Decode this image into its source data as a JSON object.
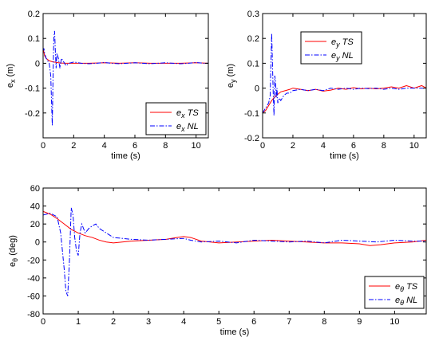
{
  "colors": {
    "ts": "#ff0000",
    "nl": "#0000ff"
  },
  "chart_data": [
    {
      "id": "ex",
      "type": "line",
      "xlabel": "time (s)",
      "ylabel_base": "e",
      "ylabel_sub": "x",
      "ylabel_unit": " (m)",
      "xlim": [
        0,
        10.8
      ],
      "ylim": [
        -0.3,
        0.2
      ],
      "xticks": [
        0,
        2,
        4,
        6,
        8,
        10
      ],
      "yticks": [
        -0.2,
        -0.1,
        0,
        0.1,
        0.2
      ],
      "ytick_labels": [
        "-0.2",
        "-0.1",
        "0",
        "0.1",
        "0.2"
      ],
      "legend_position": "bottom-right",
      "series": [
        {
          "name_base": "e",
          "name_sub": "x",
          "name_suffix": "TS",
          "style": "solid",
          "color_key": "ts",
          "x": [
            0,
            0.1,
            0.2,
            0.3,
            0.4,
            0.5,
            0.6,
            0.8,
            1.0,
            1.2,
            1.5,
            2,
            3,
            4,
            5,
            6,
            7,
            8,
            9,
            10,
            10.8
          ],
          "y": [
            0.06,
            0.03,
            0.02,
            0.015,
            0.01,
            0.008,
            0.006,
            0.004,
            0.002,
            0.001,
            0.0,
            0.0,
            0.0,
            0.002,
            0.0,
            0.002,
            0.0,
            0.0,
            0.0,
            0.002,
            0.0
          ]
        },
        {
          "name_base": "e",
          "name_sub": "x",
          "name_suffix": "NL",
          "style": "dashdot",
          "color_key": "nl",
          "x": [
            0,
            0.05,
            0.1,
            0.2,
            0.3,
            0.4,
            0.5,
            0.55,
            0.6,
            0.65,
            0.7,
            0.75,
            0.8,
            0.85,
            0.9,
            0.95,
            1.0,
            1.1,
            1.2,
            1.3,
            1.5,
            1.7,
            2.0,
            2.5,
            3,
            3.5,
            4,
            4.5,
            5,
            5.5,
            6,
            6.5,
            7,
            7.5,
            8,
            8.5,
            9,
            9.5,
            10,
            10.5,
            10.8
          ],
          "y": [
            0.05,
            0.06,
            0.04,
            0.02,
            0.01,
            0.0,
            -0.05,
            -0.15,
            -0.25,
            -0.05,
            0.1,
            0.13,
            0.05,
            -0.02,
            0.04,
            0.03,
            0.02,
            -0.02,
            0.02,
            0.01,
            -0.01,
            0.0,
            0.005,
            0.0,
            -0.002,
            0.0,
            0.003,
            0.0,
            -0.002,
            0.0,
            0.002,
            0.0,
            -0.002,
            0.0,
            0.002,
            0.0,
            -0.002,
            0.0,
            0.003,
            0.0,
            0.0
          ]
        }
      ]
    },
    {
      "id": "ey",
      "type": "line",
      "xlabel": "time (s)",
      "ylabel_base": "e",
      "ylabel_sub": "y",
      "ylabel_unit": " (m)",
      "xlim": [
        0,
        10.8
      ],
      "ylim": [
        -0.2,
        0.3
      ],
      "xticks": [
        0,
        2,
        4,
        6,
        8,
        10
      ],
      "yticks": [
        -0.2,
        -0.1,
        0,
        0.1,
        0.2,
        0.3
      ],
      "ytick_labels": [
        "-0.2",
        "-0.1",
        "0",
        "0.1",
        "0.2",
        "0.3"
      ],
      "legend_position": "top-right",
      "series": [
        {
          "name_base": "e",
          "name_sub": "y",
          "name_suffix": "TS",
          "style": "solid",
          "color_key": "ts",
          "x": [
            0,
            0.2,
            0.4,
            0.6,
            0.8,
            1.0,
            1.2,
            1.5,
            1.8,
            2.0,
            2.5,
            3,
            3.5,
            4,
            4.5,
            5,
            5.5,
            6,
            6.5,
            7,
            7.5,
            8,
            8.5,
            9,
            9.5,
            10,
            10.5,
            10.8
          ],
          "y": [
            -0.1,
            -0.09,
            -0.07,
            -0.05,
            -0.035,
            -0.025,
            -0.015,
            -0.01,
            -0.005,
            0.0,
            -0.005,
            -0.01,
            -0.005,
            -0.012,
            -0.008,
            0.0,
            -0.005,
            0.002,
            -0.003,
            0.0,
            -0.003,
            0.0,
            0.005,
            0.0,
            0.01,
            0.0,
            0.01,
            0.0
          ]
        },
        {
          "name_base": "e",
          "name_sub": "y",
          "name_suffix": "NL",
          "style": "dashdot",
          "color_key": "nl",
          "x": [
            0,
            0.2,
            0.4,
            0.5,
            0.55,
            0.6,
            0.65,
            0.7,
            0.75,
            0.8,
            0.85,
            0.9,
            0.95,
            1.0,
            1.1,
            1.2,
            1.4,
            1.6,
            1.8,
            2.0,
            2.5,
            3,
            3.5,
            4,
            4.5,
            5,
            5.5,
            6,
            6.5,
            7,
            7.5,
            8,
            8.5,
            9,
            9.5,
            10,
            10.5,
            10.8
          ],
          "y": [
            -0.1,
            -0.08,
            -0.06,
            -0.03,
            0.1,
            0.22,
            0.1,
            -0.02,
            -0.11,
            0.05,
            0.03,
            -0.04,
            0.0,
            -0.06,
            -0.04,
            -0.05,
            -0.03,
            -0.02,
            -0.02,
            -0.01,
            -0.005,
            -0.01,
            -0.005,
            -0.01,
            0.0,
            -0.005,
            0.0,
            -0.005,
            0.0,
            -0.002,
            0.0,
            -0.005,
            0.0,
            -0.005,
            0.0,
            0.0,
            0.0,
            0.0
          ]
        }
      ]
    },
    {
      "id": "etheta",
      "type": "line",
      "xlabel": "time (s)",
      "ylabel_base": "e",
      "ylabel_sub": "θ",
      "ylabel_unit": " (deg)",
      "xlim": [
        0,
        10.9
      ],
      "ylim": [
        -80,
        60
      ],
      "xticks": [
        0,
        1,
        2,
        3,
        4,
        5,
        6,
        7,
        8,
        9,
        10
      ],
      "yticks": [
        -80,
        -60,
        -40,
        -20,
        0,
        20,
        40,
        60
      ],
      "ytick_labels": [
        "-80",
        "-60",
        "-40",
        "-20",
        "0",
        "20",
        "40",
        "60"
      ],
      "legend_position": "bottom-right",
      "series": [
        {
          "name_base": "e",
          "name_sub": "θ",
          "name_suffix": "TS",
          "style": "solid",
          "color_key": "ts",
          "x": [
            0,
            0.2,
            0.4,
            0.6,
            0.8,
            1.0,
            1.2,
            1.4,
            1.6,
            1.8,
            2.0,
            2.5,
            3,
            3.5,
            3.8,
            4.0,
            4.2,
            4.5,
            5,
            5.5,
            6,
            6.5,
            7,
            7.5,
            8,
            8.5,
            9,
            9.3,
            9.6,
            10,
            10.5,
            10.9
          ],
          "y": [
            34,
            31,
            26,
            20,
            14,
            10,
            7,
            5,
            2,
            0,
            -1,
            1,
            2,
            3,
            5,
            6,
            5,
            1,
            -1,
            0,
            1,
            2,
            1,
            0,
            -1,
            -1,
            -2,
            -4,
            -3,
            -1,
            0,
            2
          ]
        },
        {
          "name_base": "e",
          "name_sub": "θ",
          "name_suffix": "NL",
          "style": "dashdot",
          "color_key": "nl",
          "x": [
            0,
            0.2,
            0.4,
            0.5,
            0.6,
            0.65,
            0.7,
            0.75,
            0.8,
            0.85,
            0.9,
            0.95,
            1.0,
            1.05,
            1.1,
            1.2,
            1.3,
            1.4,
            1.5,
            1.6,
            1.8,
            2.0,
            2.5,
            3,
            3.5,
            4,
            4.2,
            4.5,
            5,
            5.5,
            6,
            6.5,
            7,
            7.5,
            8,
            8.5,
            9,
            9.5,
            10,
            10.5,
            10.9
          ],
          "y": [
            30,
            32,
            28,
            10,
            -30,
            -55,
            -60,
            -20,
            38,
            30,
            5,
            -10,
            -15,
            10,
            20,
            10,
            15,
            18,
            20,
            15,
            10,
            5,
            3,
            2,
            3,
            4,
            2,
            0,
            1,
            -1,
            2,
            1,
            0,
            1,
            -1,
            2,
            1,
            0,
            2,
            1,
            1
          ]
        }
      ]
    }
  ]
}
